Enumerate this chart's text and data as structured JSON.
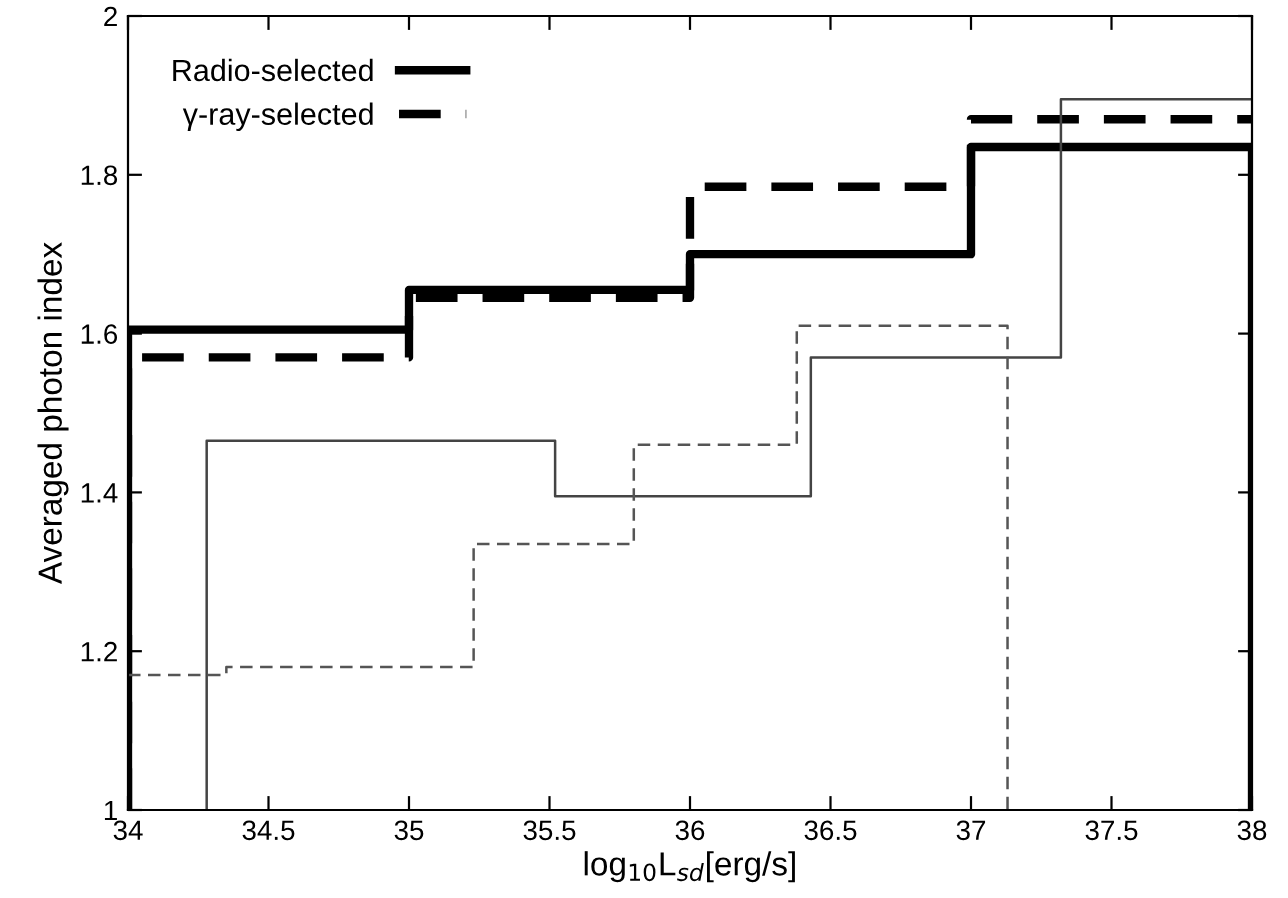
{
  "chart_data": {
    "type": "step",
    "xlabel": "log$_{10}$L$_{sd}$[erg/s]",
    "ylabel": "Averaged photon index",
    "xlim": [
      34,
      38
    ],
    "xticks": [
      34,
      34.5,
      35,
      35.5,
      36,
      36.5,
      37,
      37.5,
      38
    ],
    "ylim": [
      1,
      2
    ],
    "yticks": [
      1,
      1.2,
      1.4,
      1.6,
      1.8,
      2
    ],
    "grid": false,
    "legend": "top left",
    "series": [
      {
        "name": "Radio-selected",
        "color": "#000000",
        "line_style": "solid",
        "x": [
          34,
          34,
          35,
          36,
          37,
          38,
          38
        ],
        "values": [
          1,
          1.605,
          1.655,
          1.7,
          1.835,
          1.835,
          1
        ]
      },
      {
        "name": "γ-ray-selected",
        "color": "#000000",
        "line_style": "dashed",
        "x": [
          34,
          34,
          35,
          36,
          37,
          38
        ],
        "values": [
          1,
          1.57,
          1.645,
          1.785,
          1.87,
          1.87
        ]
      },
      {
        "color": "#444444",
        "line_style": "solid",
        "x": [
          34.28,
          34.28,
          35.52,
          36.43,
          37.32,
          38
        ],
        "values": [
          1,
          1.465,
          1.395,
          1.57,
          1.895,
          1.895
        ]
      },
      {
        "color": "#555555",
        "line_style": "dashed",
        "x": [
          34,
          34.35,
          35.23,
          35.8,
          36.38,
          37.13
        ],
        "values": [
          1.17,
          1.18,
          1.335,
          1.46,
          1.61,
          1
        ]
      }
    ]
  }
}
